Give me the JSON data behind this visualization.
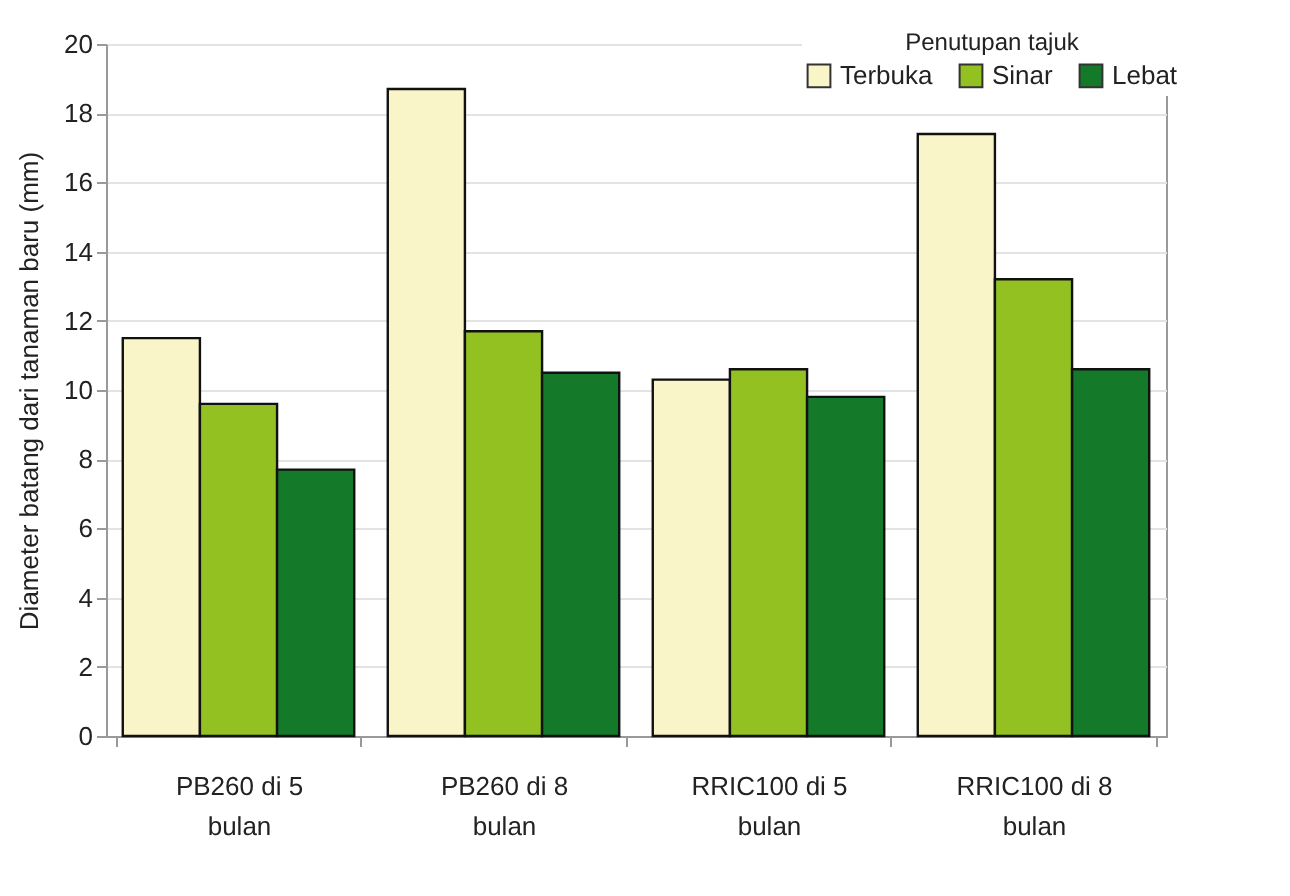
{
  "chart_data": {
    "type": "bar",
    "ylabel": "Diameter batang dari tanaman baru (mm)",
    "legend_title": "Penutupan tajuk",
    "categories": [
      "PB260 di 5 bulan",
      "PB260 di 8 bulan",
      "RRIC100 di 5 bulan",
      "RRIC100 di 8 bulan"
    ],
    "series": [
      {
        "name": "Terbuka",
        "color": "#faf5c8",
        "values": [
          11.5,
          18.7,
          10.3,
          17.4
        ]
      },
      {
        "name": "Sinar",
        "color": "#93c122",
        "values": [
          9.6,
          11.7,
          10.6,
          13.2
        ]
      },
      {
        "name": "Lebat",
        "color": "#147a2a",
        "values": [
          7.7,
          10.5,
          9.8,
          10.6
        ]
      }
    ],
    "ylim": [
      0,
      20
    ],
    "yticks": [
      0,
      2,
      4,
      6,
      8,
      10,
      12,
      14,
      16,
      18,
      20
    ],
    "grid": "y",
    "legend": "top right"
  }
}
